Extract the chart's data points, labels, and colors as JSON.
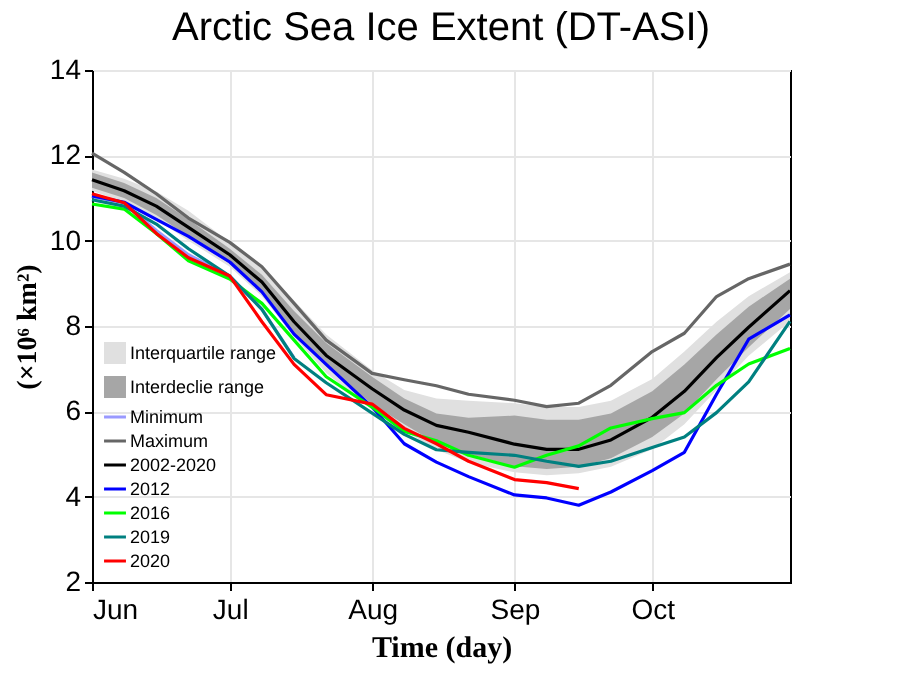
{
  "chart_data": {
    "type": "line",
    "title": "Arctic Sea Ice Extent (DT-ASI)",
    "xlabel": "Time (day)",
    "ylabel": "(×10⁶ km²)",
    "x": [
      "--06-01",
      "--06-08",
      "--06-15",
      "--06-22",
      "--07-01",
      "--07-08",
      "--07-15",
      "--07-22",
      "--08-01",
      "--08-08",
      "--08-15",
      "--08-22",
      "--09-01",
      "--09-08",
      "--09-15",
      "--09-22",
      "--10-01",
      "--10-08",
      "--10-15",
      "--10-22",
      "--10-31"
    ],
    "xlim": [
      "--06-01",
      "--10-31"
    ],
    "xticks": [
      {
        "value": "--06-01",
        "label": "Jun"
      },
      {
        "value": "--07-01",
        "label": "Jul"
      },
      {
        "value": "--08-01",
        "label": "Aug"
      },
      {
        "value": "--09-01",
        "label": "Sep"
      },
      {
        "value": "--10-01",
        "label": "Oct"
      }
    ],
    "ylim": [
      2,
      14
    ],
    "yticks": [
      2,
      4,
      6,
      8,
      10,
      12,
      14
    ],
    "grid": true,
    "legend": "bottom left",
    "series": [
      {
        "name": "Interquartile range",
        "type": "area",
        "color": "#e0e0e0",
        "values": [
          null,
          null,
          null,
          null,
          null,
          null,
          null,
          null,
          null,
          null,
          null,
          null,
          null,
          null,
          null,
          null,
          null,
          null,
          null,
          null,
          null
        ],
        "lower": [
          11.17,
          10.9,
          10.5,
          10.0,
          9.39,
          8.7,
          7.75,
          6.9,
          6.03,
          5.55,
          5.1,
          4.8,
          4.57,
          4.5,
          4.55,
          4.7,
          5.11,
          5.7,
          6.5,
          7.3,
          8.11
        ],
        "upper": [
          11.67,
          11.45,
          11.15,
          10.7,
          9.96,
          9.4,
          8.6,
          7.8,
          6.96,
          6.5,
          6.3,
          6.25,
          6.19,
          6.1,
          6.1,
          6.25,
          6.76,
          7.4,
          8.1,
          8.7,
          9.26
        ]
      },
      {
        "name": "Interdeclie range",
        "type": "area",
        "color": "#a6a6a6",
        "values": [
          null,
          null,
          null,
          null,
          null,
          null,
          null,
          null,
          null,
          null,
          null,
          null,
          null,
          null,
          null,
          null,
          null,
          null,
          null,
          null,
          null
        ],
        "lower": [
          11.24,
          11.0,
          10.6,
          10.1,
          9.46,
          8.8,
          7.85,
          7.05,
          6.17,
          5.7,
          5.25,
          5.0,
          4.71,
          4.65,
          4.7,
          4.9,
          5.4,
          5.95,
          6.75,
          7.5,
          8.4
        ],
        "upper": [
          11.6,
          11.35,
          11.0,
          10.5,
          9.81,
          9.2,
          8.35,
          7.6,
          6.81,
          6.3,
          5.95,
          5.85,
          5.9,
          5.8,
          5.8,
          5.95,
          6.47,
          7.1,
          7.8,
          8.45,
          9.11
        ]
      },
      {
        "name": "Minimum",
        "color": "#9999ff",
        "values": [
          11.03,
          10.89,
          10.24,
          9.67,
          9.17,
          8.39,
          7.25,
          null,
          null,
          null,
          null,
          null,
          null,
          null,
          null,
          null,
          null,
          null,
          null,
          null,
          null
        ]
      },
      {
        "name": "Maximum",
        "color": "#666666",
        "values": [
          12.05,
          11.6,
          11.1,
          10.53,
          9.96,
          9.39,
          8.53,
          7.67,
          6.89,
          6.74,
          6.6,
          6.4,
          6.26,
          6.11,
          6.19,
          6.61,
          7.4,
          7.83,
          8.69,
          9.11,
          9.45
        ]
      },
      {
        "name": "2002-2020",
        "color": "#000000",
        "values": [
          11.43,
          11.17,
          10.81,
          10.31,
          9.67,
          9.03,
          8.1,
          7.31,
          6.53,
          6.03,
          5.67,
          5.51,
          5.23,
          5.11,
          5.11,
          5.33,
          5.86,
          6.47,
          7.26,
          7.97,
          8.83
        ]
      },
      {
        "name": "2012",
        "color": "#0000ff",
        "values": [
          11.05,
          10.9,
          10.5,
          10.1,
          9.5,
          8.8,
          7.81,
          7.1,
          6.1,
          5.24,
          4.81,
          4.47,
          4.04,
          3.97,
          3.8,
          4.11,
          4.61,
          5.04,
          6.4,
          7.69,
          8.26
        ]
      },
      {
        "name": "2016",
        "color": "#00ff00",
        "values": [
          10.86,
          10.74,
          10.17,
          9.53,
          9.1,
          8.53,
          7.67,
          6.81,
          6.1,
          5.53,
          5.31,
          4.97,
          4.69,
          4.97,
          5.19,
          5.61,
          5.83,
          5.97,
          6.61,
          7.11,
          7.47
        ]
      },
      {
        "name": "2019",
        "color": "#008080",
        "values": [
          10.96,
          10.81,
          10.39,
          9.81,
          9.17,
          8.39,
          7.24,
          6.67,
          5.96,
          5.46,
          5.1,
          5.04,
          4.97,
          4.83,
          4.71,
          4.83,
          5.15,
          5.4,
          5.97,
          6.69,
          8.11
        ]
      },
      {
        "name": "2020",
        "color": "#ff0000",
        "values": [
          11.1,
          10.89,
          10.17,
          9.6,
          9.17,
          8.1,
          7.1,
          6.39,
          6.17,
          5.6,
          5.24,
          4.83,
          4.4,
          4.33,
          4.19,
          null,
          null,
          null,
          null,
          null,
          null
        ]
      }
    ]
  }
}
